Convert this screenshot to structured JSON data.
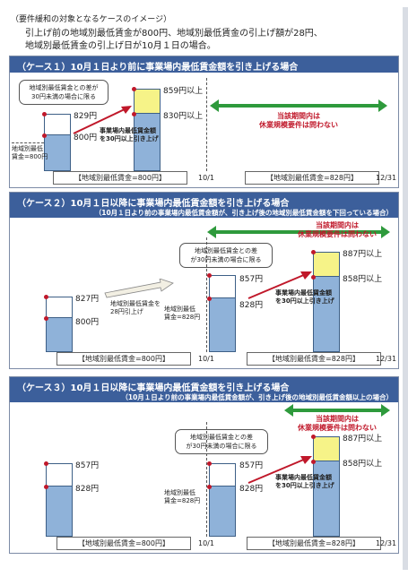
{
  "intro": {
    "heading": "（要件緩和の対象となるケースのイメージ）",
    "lines": [
      "引上げ前の地域別最低賃金が800円、地域別最低賃金の引上げ額が28円、",
      "地域別最低賃金の引上げ日が10月１日の場合。"
    ]
  },
  "case1": {
    "title": "（ケース１）10月１日より前に事業場内最低賃金額を引き上げる場合",
    "callout": [
      "地域別最低賃金との差が",
      "30円未満の場合に限る"
    ],
    "left_bar": {
      "upper": "829円",
      "lower": "800円"
    },
    "min_wage_label": [
      "地域別最低",
      "賃金=800円"
    ],
    "right_bar": {
      "upper": "859円以上",
      "lower": "830円以上"
    },
    "raise_note": [
      "事業場内最低賃金額",
      "を30円以上引き上げ"
    ],
    "exempt_text": [
      "当該期間内は",
      "休業規模要件は問わない"
    ],
    "bottom_left": "【地域別最低賃金=800円】",
    "date_mid": "10/1",
    "bottom_right": "【地域別最低賃金=828円】",
    "date_end": "12/31"
  },
  "case2": {
    "title": "（ケース２）10月１日以降に事業場内最低賃金額を引き上げる場合",
    "subtitle": "（10月１日より前の事業場内最低賃金額が、引き上げ後の地域別最低賃金額を下回っている場合）",
    "exempt_text": [
      "当該期間内は",
      "休業規模要件は問わない"
    ],
    "left_bar": {
      "upper": "827円",
      "lower": "800円"
    },
    "raise_label": [
      "地域別最低賃金を",
      "28円引上げ"
    ],
    "callout": [
      "地域別最低賃金との差",
      "が30円未満の場合に限る"
    ],
    "mid_bar": {
      "upper": "857円",
      "lower": "828円"
    },
    "min_wage_label": [
      "地域別最低",
      "賃金=828円"
    ],
    "right_bar": {
      "upper": "887円以上",
      "lower": "858円以上"
    },
    "raise_note": [
      "事業場内最低賃金額",
      "を30円以上引き上げ"
    ],
    "bottom_left": "【地域別最低賃金=800円】",
    "date_mid": "10/1",
    "bottom_right": "【地域別最低賃金=828円】",
    "date_end": "12/31"
  },
  "case3": {
    "title": "（ケース３）10月１日以降に事業場内最低賃金額を引き上げる場合",
    "subtitle": "（10月１日より前の事業場内最低賃金額が、引き上げ後の地域別最低賃金額以上の場合）",
    "exempt_text": [
      "当該期間内は",
      "休業規模要件は問わない"
    ],
    "left_bar": {
      "upper": "857円",
      "lower": "828円"
    },
    "callout": [
      "地域別最低賃金との差",
      "が30円未満の場合に限る"
    ],
    "mid_bar": {
      "upper": "857円",
      "lower": "828円"
    },
    "min_wage_label": [
      "地域別最低",
      "賃金=828円"
    ],
    "right_bar": {
      "upper": "887円以上",
      "lower": "858円以上"
    },
    "raise_note": [
      "事業場内最低賃金額",
      "を30円以上引き上げ"
    ],
    "bottom_left": "【地域別最低賃金=800円】",
    "date_mid": "10/1",
    "bottom_right": "【地域別最低賃金=828円】",
    "date_end": "12/31"
  },
  "colors": {
    "header": "#3c5f9b",
    "bar": "#8fb2d9",
    "accent_red": "#c0182a",
    "green_arrow": "#2e9a3c",
    "highlight": "#f6f388"
  }
}
